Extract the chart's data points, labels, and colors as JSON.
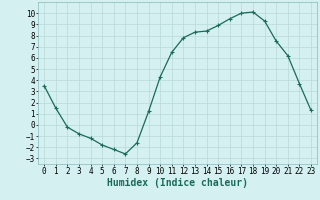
{
  "x": [
    0,
    1,
    2,
    3,
    4,
    5,
    6,
    7,
    8,
    9,
    10,
    11,
    12,
    13,
    14,
    15,
    16,
    17,
    18,
    19,
    20,
    21,
    22,
    23
  ],
  "y": [
    3.5,
    1.5,
    -0.2,
    -0.8,
    -1.2,
    -1.8,
    -2.2,
    -2.6,
    -1.6,
    1.2,
    4.3,
    6.5,
    7.8,
    8.3,
    8.4,
    8.9,
    9.5,
    10.0,
    10.1,
    9.3,
    7.5,
    6.2,
    3.7,
    1.3
  ],
  "line_color": "#1a6b5a",
  "marker": "+",
  "marker_size": 3,
  "bg_color": "#d4f0f0",
  "grid_color": "#b8dada",
  "xlabel": "Humidex (Indice chaleur)",
  "xlim": [
    -0.5,
    23.5
  ],
  "ylim": [
    -3.5,
    11
  ],
  "yticks": [
    -3,
    -2,
    -1,
    0,
    1,
    2,
    3,
    4,
    5,
    6,
    7,
    8,
    9,
    10
  ],
  "xticks": [
    0,
    1,
    2,
    3,
    4,
    5,
    6,
    7,
    8,
    9,
    10,
    11,
    12,
    13,
    14,
    15,
    16,
    17,
    18,
    19,
    20,
    21,
    22,
    23
  ],
  "tick_fontsize": 5.5,
  "label_fontsize": 7
}
